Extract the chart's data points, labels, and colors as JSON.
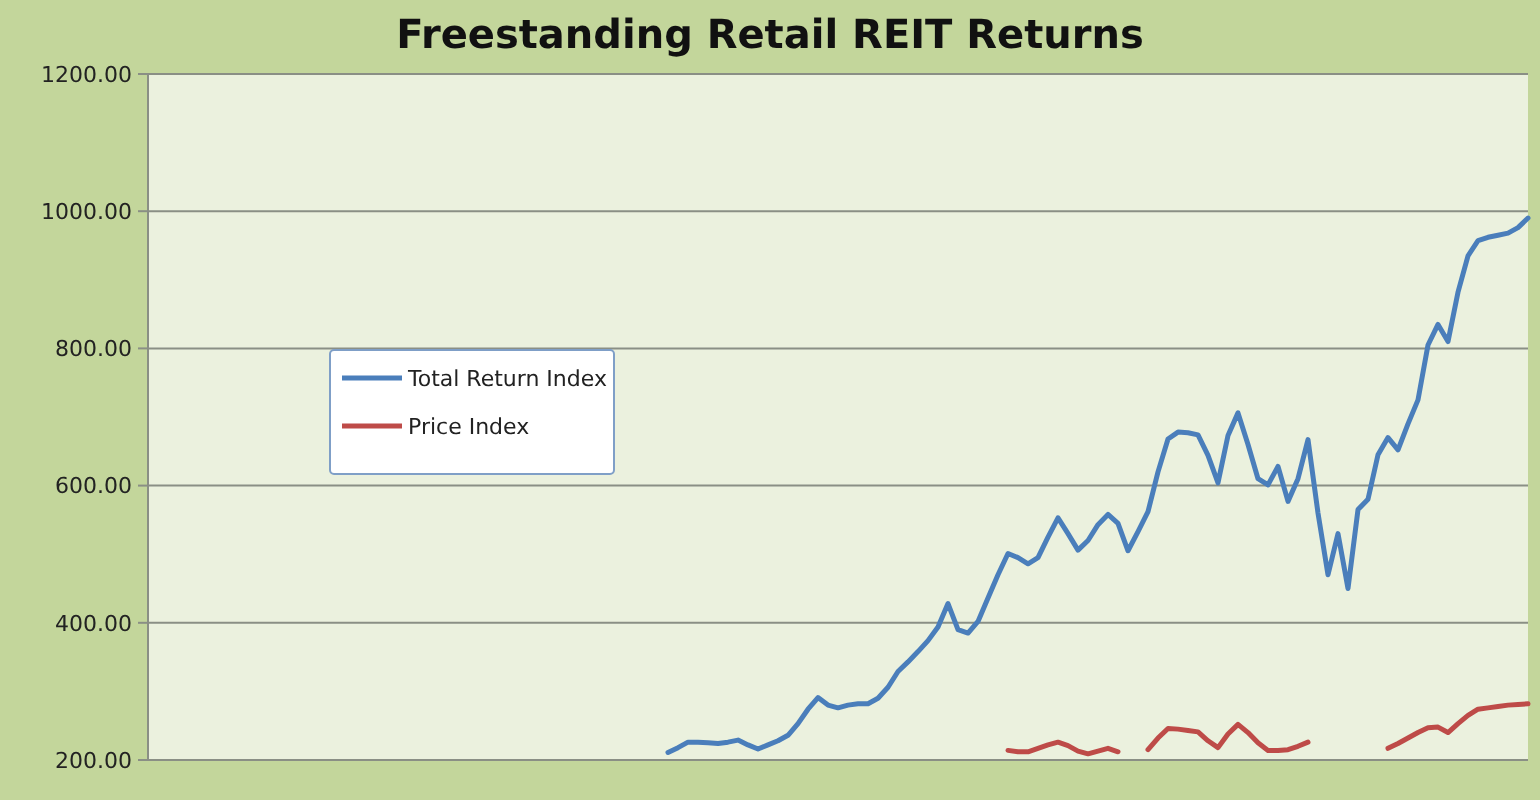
{
  "chart_data": {
    "type": "line",
    "title": "Freestanding Retail REIT Returns",
    "categories": [
      null,
      null,
      null,
      null,
      null,
      null,
      null,
      null,
      null,
      null,
      null,
      null,
      null,
      null,
      null,
      null,
      null,
      null,
      null,
      null,
      null,
      null,
      null,
      null,
      null,
      null,
      null,
      null,
      null,
      null,
      null,
      null,
      null,
      null,
      null,
      null,
      null,
      null,
      null,
      null,
      null,
      null,
      null,
      null,
      null,
      null,
      null,
      null,
      null,
      null,
      null,
      null,
      null,
      null,
      null,
      null,
      null,
      null,
      null,
      null,
      null,
      null,
      null,
      null,
      null,
      null,
      null,
      null,
      null,
      null,
      null,
      null,
      null,
      null,
      null,
      null,
      null,
      null,
      null,
      null,
      null,
      null,
      null,
      null,
      null,
      null,
      null,
      null,
      null,
      null,
      null,
      null,
      null,
      null,
      null,
      null,
      null,
      null,
      null,
      null,
      null,
      null,
      null,
      null,
      null,
      null,
      null,
      null,
      null,
      null,
      null,
      null,
      null,
      null,
      null,
      null,
      null,
      null,
      null,
      null,
      null,
      null,
      null,
      null,
      null,
      null,
      null,
      null,
      null,
      null,
      null,
      null,
      null,
      null,
      null,
      null,
      null,
      null,
      null
    ],
    "ylim": [
      200,
      1200
    ],
    "yticks": [
      {
        "value": 200,
        "label": "200.00"
      },
      {
        "value": 400,
        "label": "400.00"
      },
      {
        "value": 600,
        "label": "600.00"
      },
      {
        "value": 800,
        "label": "800.00"
      },
      {
        "value": 1000,
        "label": "1000.00"
      },
      {
        "value": 1200,
        "label": "1200.00"
      }
    ],
    "grid": "y",
    "legend": "top left",
    "line_style": "solid",
    "series": [
      {
        "name": "Total Return Index",
        "color": "#4a7ebb",
        "values": [
          null,
          null,
          null,
          null,
          null,
          null,
          null,
          null,
          null,
          null,
          null,
          null,
          null,
          null,
          null,
          null,
          null,
          null,
          null,
          null,
          null,
          null,
          null,
          null,
          null,
          null,
          null,
          null,
          null,
          null,
          null,
          null,
          null,
          null,
          null,
          null,
          null,
          null,
          null,
          null,
          null,
          null,
          null,
          null,
          null,
          null,
          null,
          null,
          null,
          null,
          null,
          null,
          211,
          218,
          226,
          226,
          225,
          224,
          226,
          229,
          222,
          216,
          222,
          228,
          236,
          253,
          274,
          291,
          280,
          276,
          280,
          282,
          282,
          290,
          306,
          329,
          343,
          358,
          374,
          394,
          428,
          390,
          385,
          402,
          436,
          470,
          501,
          495,
          486,
          495,
          525,
          553,
          530,
          506,
          520,
          543,
          558,
          545,
          505,
          533,
          562,
          620,
          668,
          678,
          677,
          674,
          644,
          604,
          673,
          706,
          660,
          610,
          601,
          628,
          577,
          610,
          667,
          560,
          470,
          530,
          450,
          565,
          580,
          645,
          670,
          652,
          690,
          725,
          805,
          835,
          810,
          882,
          935,
          957,
          962,
          965,
          968,
          976,
          990
        ]
      },
      {
        "name": "Price Index",
        "color": "#be4b48",
        "values": [
          null,
          null,
          null,
          null,
          null,
          null,
          null,
          null,
          null,
          null,
          null,
          null,
          null,
          null,
          null,
          null,
          null,
          null,
          null,
          null,
          null,
          null,
          null,
          null,
          null,
          null,
          null,
          null,
          null,
          null,
          null,
          null,
          null,
          null,
          null,
          null,
          null,
          null,
          null,
          null,
          null,
          null,
          null,
          null,
          null,
          null,
          null,
          null,
          null,
          null,
          null,
          null,
          null,
          null,
          null,
          null,
          null,
          null,
          null,
          null,
          null,
          null,
          null,
          null,
          null,
          null,
          null,
          null,
          null,
          null,
          null,
          null,
          null,
          null,
          null,
          null,
          null,
          null,
          null,
          null,
          null,
          null,
          null,
          null,
          null,
          null,
          214,
          212,
          212,
          217,
          222,
          226,
          221,
          213,
          209,
          213,
          217,
          212,
          null,
          null,
          215,
          232,
          246,
          245,
          243,
          241,
          228,
          218,
          238,
          252,
          240,
          225,
          214,
          214,
          215,
          220,
          226,
          null,
          null,
          null,
          null,
          null,
          null,
          null,
          217,
          224,
          232,
          240,
          247,
          248,
          240,
          253,
          265,
          274,
          276,
          278,
          280,
          281,
          282
        ]
      }
    ]
  }
}
